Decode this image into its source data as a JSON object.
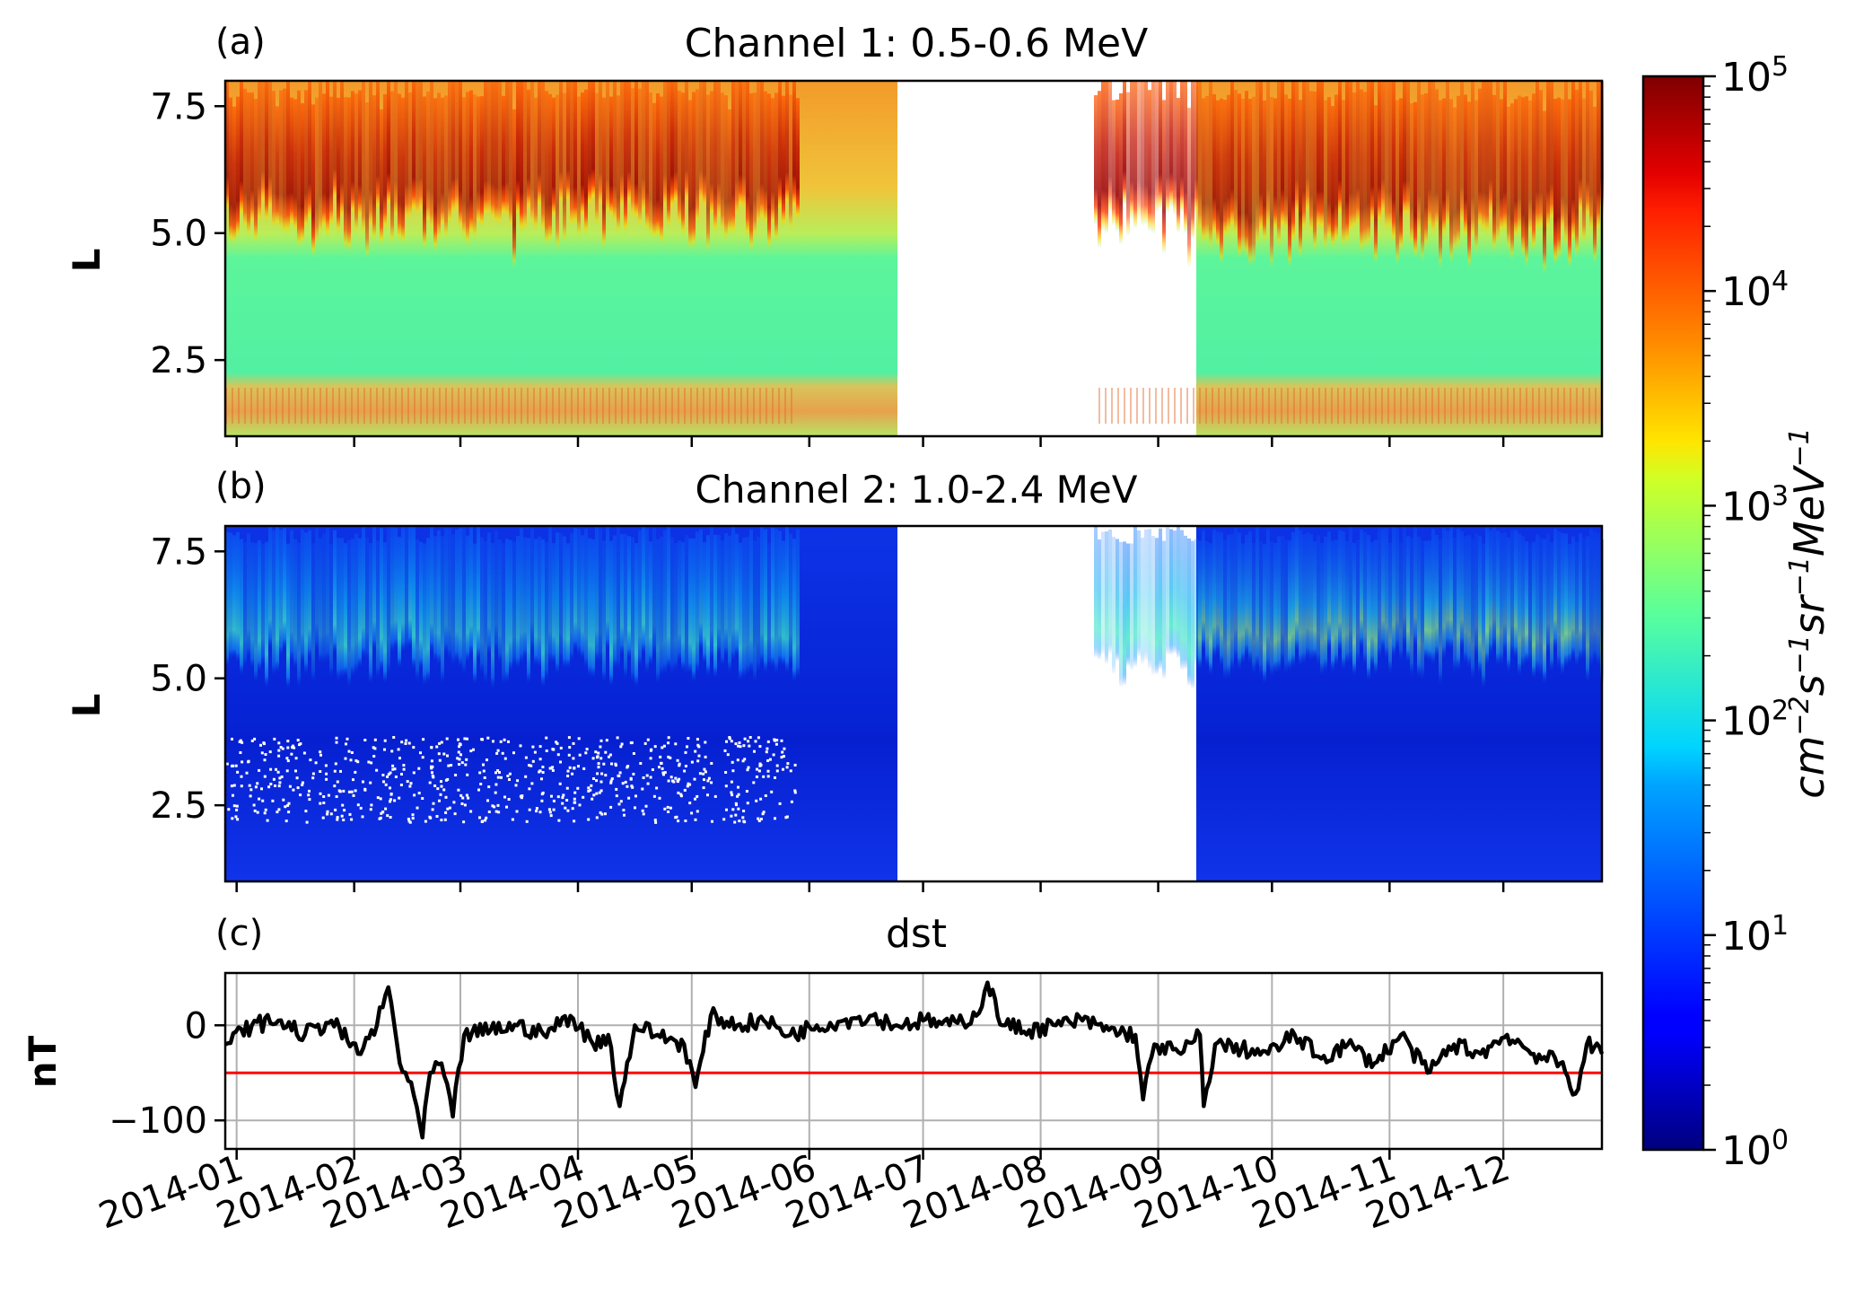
{
  "figure": {
    "colorbar": {
      "label_html": "cm<tspan baseline-shift=\"super\" font-size=\"30\">−2</tspan>s<tspan baseline-shift=\"super\" font-size=\"30\">−1</tspan>sr<tspan baseline-shift=\"super\" font-size=\"30\">−1</tspan>MeV<tspan baseline-shift=\"super\" font-size=\"30\">−1</tspan>",
      "scale": "log",
      "range": [
        1,
        100000
      ],
      "colormap": "jet",
      "ticks": [
        {
          "base": "10",
          "exp": "0",
          "value": 1
        },
        {
          "base": "10",
          "exp": "1",
          "value": 10
        },
        {
          "base": "10",
          "exp": "2",
          "value": 100
        },
        {
          "base": "10",
          "exp": "3",
          "value": 1000
        },
        {
          "base": "10",
          "exp": "4",
          "value": 10000
        },
        {
          "base": "10",
          "exp": "5",
          "value": 100000
        }
      ]
    },
    "shared_x_ticks": [
      "2014-01",
      "2014-02",
      "2014-03",
      "2014-04",
      "2014-05",
      "2014-06",
      "2014-07",
      "2014-08",
      "2014-09",
      "2014-10",
      "2014-11",
      "2014-12"
    ]
  },
  "chart_data": [
    {
      "type": "heatmap",
      "panel_label": "(a)",
      "title": "Channel 1: 0.5-0.6 MeV",
      "ylabel": "L",
      "xlabel": "",
      "ylim": [
        1.0,
        8.0
      ],
      "yticks": [
        "2.5",
        "5.0",
        "7.5"
      ],
      "x_range": [
        "2013-12-29",
        "2014-12-27"
      ],
      "data_gap": [
        "2014-05-29",
        "2014-08-15"
      ],
      "color_scale": "log",
      "flux_structure": {
        "outer_belt_inner_edge_L": 4.2,
        "slot_flux": 100,
        "inner_belt_L": [
          1.2,
          2.0
        ],
        "outer_belt_peak_flux": 100000
      }
    },
    {
      "type": "heatmap",
      "panel_label": "(b)",
      "title": "Channel 2: 1.0-2.4 MeV",
      "ylabel": "L",
      "xlabel": "",
      "ylim": [
        1.0,
        8.0
      ],
      "yticks": [
        "2.5",
        "5.0",
        "7.5"
      ],
      "x_range": [
        "2013-12-29",
        "2014-12-27"
      ],
      "data_gap": [
        "2014-05-29",
        "2014-08-15"
      ],
      "color_scale": "log",
      "flux_structure": {
        "outer_belt_inner_edge_L": 4.0,
        "background_flux": 2,
        "outer_belt_peak_flux": 300
      }
    },
    {
      "type": "line",
      "panel_label": "(c)",
      "title": "dst",
      "ylabel": "nT",
      "xlabel": "",
      "ylim": [
        -130,
        55
      ],
      "yticks": [
        "0",
        "−100"
      ],
      "grid": true,
      "reference_line": {
        "value": -50,
        "color": "#ff0000"
      },
      "series": [
        {
          "color": "#000000",
          "points": [
            [
              "2013-12-29",
              -20
            ],
            [
              "2014-01-05",
              0
            ],
            [
              "2014-01-12",
              5
            ],
            [
              "2014-01-19",
              -10
            ],
            [
              "2014-01-26",
              5
            ],
            [
              "2014-02-02",
              -30
            ],
            [
              "2014-02-07",
              0
            ],
            [
              "2014-02-10",
              40
            ],
            [
              "2014-02-13",
              -40
            ],
            [
              "2014-02-16",
              -60
            ],
            [
              "2014-02-19",
              -118
            ],
            [
              "2014-02-21",
              -50
            ],
            [
              "2014-02-24",
              -40
            ],
            [
              "2014-02-27",
              -96
            ],
            [
              "2014-03-02",
              -10
            ],
            [
              "2014-03-09",
              -5
            ],
            [
              "2014-03-16",
              0
            ],
            [
              "2014-03-23",
              -10
            ],
            [
              "2014-03-30",
              10
            ],
            [
              "2014-04-05",
              -20
            ],
            [
              "2014-04-09",
              -10
            ],
            [
              "2014-04-12",
              -85
            ],
            [
              "2014-04-16",
              0
            ],
            [
              "2014-04-22",
              -10
            ],
            [
              "2014-04-29",
              -20
            ],
            [
              "2014-05-02",
              -65
            ],
            [
              "2014-05-06",
              10
            ],
            [
              "2014-05-13",
              0
            ],
            [
              "2014-05-20",
              5
            ],
            [
              "2014-05-27",
              -10
            ],
            [
              "2014-06-03",
              0
            ],
            [
              "2014-06-10",
              5
            ],
            [
              "2014-06-17",
              10
            ],
            [
              "2014-06-24",
              0
            ],
            [
              "2014-07-01",
              5
            ],
            [
              "2014-07-08",
              0
            ],
            [
              "2014-07-15",
              10
            ],
            [
              "2014-07-18",
              45
            ],
            [
              "2014-07-22",
              0
            ],
            [
              "2014-07-29",
              -5
            ],
            [
              "2014-08-05",
              0
            ],
            [
              "2014-08-12",
              5
            ],
            [
              "2014-08-19",
              -5
            ],
            [
              "2014-08-26",
              -10
            ],
            [
              "2014-08-28",
              -78
            ],
            [
              "2014-08-31",
              -20
            ],
            [
              "2014-09-07",
              -30
            ],
            [
              "2014-09-12",
              -10
            ],
            [
              "2014-09-13",
              -85
            ],
            [
              "2014-09-16",
              -20
            ],
            [
              "2014-09-23",
              -25
            ],
            [
              "2014-09-30",
              -30
            ],
            [
              "2014-10-07",
              -10
            ],
            [
              "2014-10-14",
              -35
            ],
            [
              "2014-10-21",
              -20
            ],
            [
              "2014-10-28",
              -40
            ],
            [
              "2014-11-04",
              -10
            ],
            [
              "2014-11-11",
              -50
            ],
            [
              "2014-11-18",
              -20
            ],
            [
              "2014-11-25",
              -30
            ],
            [
              "2014-12-02",
              -10
            ],
            [
              "2014-12-09",
              -30
            ],
            [
              "2014-12-16",
              -40
            ],
            [
              "2014-12-20",
              -72
            ],
            [
              "2014-12-23",
              -20
            ],
            [
              "2014-12-27",
              -30
            ]
          ]
        }
      ]
    }
  ]
}
